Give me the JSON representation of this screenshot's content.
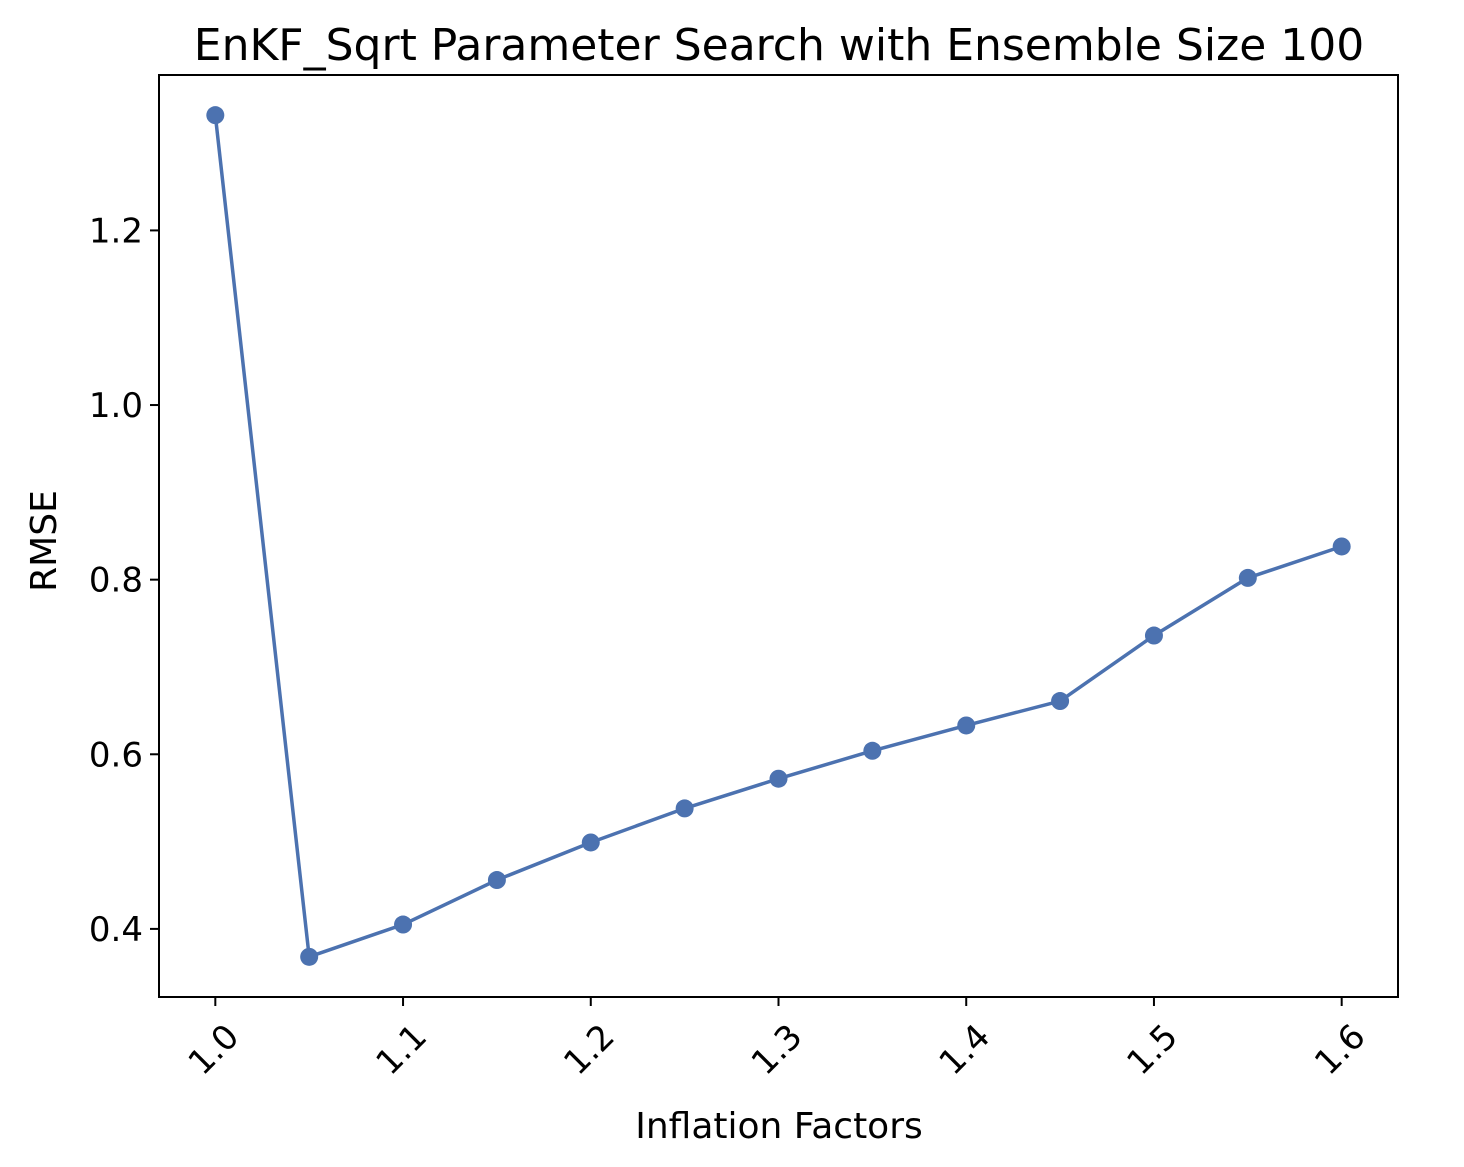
{
  "chart_data": {
    "type": "line",
    "title": "EnKF_Sqrt Parameter Search with Ensemble Size 100",
    "xlabel": "Inflation Factors",
    "ylabel": "RMSE",
    "x": [
      1.0,
      1.05,
      1.1,
      1.15,
      1.2,
      1.25,
      1.3,
      1.35,
      1.4,
      1.45,
      1.5,
      1.55,
      1.6
    ],
    "series": [
      {
        "values": [
          1.332,
          0.368,
          0.405,
          0.456,
          0.499,
          0.538,
          0.572,
          0.604,
          0.633,
          0.661,
          0.736,
          0.802,
          0.838
        ],
        "color": "#4c72b0"
      }
    ],
    "xticks": [
      1.0,
      1.1,
      1.2,
      1.3,
      1.4,
      1.5,
      1.6
    ],
    "xtick_labels": [
      "1.0",
      "1.1",
      "1.2",
      "1.3",
      "1.4",
      "1.5",
      "1.6"
    ],
    "yticks": [
      0.4,
      0.6,
      0.8,
      1.0,
      1.2
    ],
    "ytick_labels": [
      "0.4",
      "0.6",
      "0.8",
      "1.0",
      "1.2"
    ],
    "xlim": [
      0.97,
      1.63
    ],
    "ylim": [
      0.322,
      1.378
    ],
    "grid": false,
    "legend": "none"
  }
}
